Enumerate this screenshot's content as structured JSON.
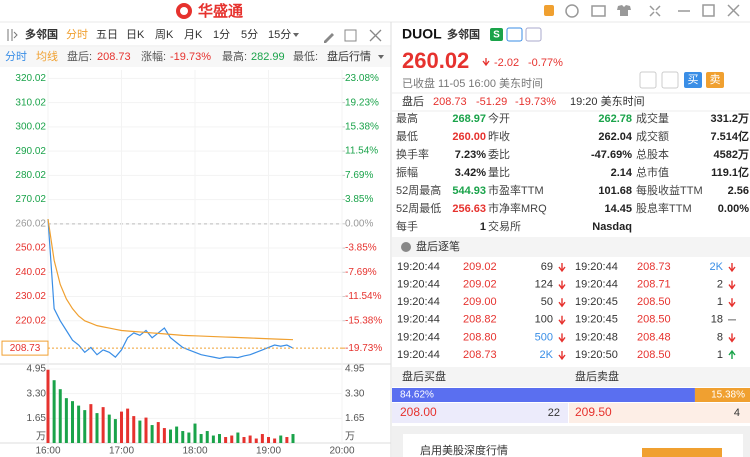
{
  "header": {
    "logo": "华盛通"
  },
  "toolbar": {
    "name": "多邻国",
    "tabs": [
      "分时",
      "五日",
      "日K",
      "周K",
      "月K",
      "1分",
      "5分",
      "15分"
    ]
  },
  "info": {
    "fields": [
      {
        "label": "盘后:",
        "value": "208.73",
        "color": "#e6322e"
      },
      {
        "label": "涨幅:",
        "value": "-19.73%",
        "color": "#e6322e"
      },
      {
        "label": "最高:",
        "value": "282.99",
        "color": "#1aa34a"
      },
      {
        "label": "最低:"
      }
    ],
    "link": "盘后行情"
  },
  "chart_data": {
    "type": "line",
    "x": [
      "16:00",
      "16:05",
      "16:10",
      "16:15",
      "16:20",
      "16:25",
      "16:30",
      "16:35",
      "16:40",
      "16:45",
      "16:50",
      "16:55",
      "17:00",
      "17:05",
      "17:10",
      "17:15",
      "17:20",
      "17:25",
      "17:30",
      "17:35",
      "17:40",
      "17:45",
      "17:50",
      "17:55",
      "18:00",
      "18:05",
      "18:10",
      "18:15",
      "18:20",
      "18:25",
      "18:30",
      "18:35",
      "18:40",
      "18:45",
      "18:50",
      "18:55",
      "19:00",
      "19:05",
      "19:10",
      "19:15",
      "19:20"
    ],
    "series": [
      {
        "name": "分时",
        "color": "#3a8ee6",
        "values": [
          262,
          225,
          220,
          216,
          212,
          210,
          207,
          209,
          206,
          208,
          207,
          205,
          208,
          213,
          215,
          214,
          216,
          213,
          215,
          217,
          213,
          211,
          209,
          208,
          207,
          206,
          205.5,
          205,
          204.5,
          205,
          205,
          204.8,
          205.5,
          206,
          207,
          208,
          209,
          210,
          209.5,
          210,
          208.73
        ]
      },
      {
        "name": "均线",
        "color": "#f0a030",
        "values": [
          262,
          245,
          235,
          229,
          225,
          222,
          220,
          219,
          218,
          217.5,
          217,
          216.5,
          216,
          215.8,
          215.6,
          215.4,
          215.2,
          215,
          214.8,
          214.6,
          214.4,
          214.2,
          214,
          213.9,
          213.8,
          213.7,
          213.6,
          213.5,
          213.4,
          213.3,
          213.2,
          213.1,
          213,
          212.9,
          212.8,
          212.7,
          212.6,
          212.5,
          212.4,
          212.3,
          212.2
        ]
      }
    ],
    "volume": {
      "values": [
        4.9,
        4.2,
        3.6,
        3.0,
        2.8,
        2.5,
        2.2,
        2.6,
        2.0,
        2.4,
        1.9,
        1.6,
        2.1,
        2.3,
        1.8,
        1.5,
        1.7,
        1.2,
        1.4,
        1.0,
        0.9,
        1.1,
        0.8,
        0.7,
        1.3,
        0.6,
        0.8,
        0.5,
        0.6,
        0.4,
        0.5,
        0.7,
        0.4,
        0.5,
        0.3,
        0.6,
        0.4,
        0.3,
        0.5,
        0.4,
        0.6
      ],
      "ylim": [
        0,
        4.95
      ],
      "yticks": [
        4.95,
        {
          "value": 3.3,
          "label": "3.30"
        },
        1.65
      ],
      "unit": "万",
      "up_color": "#e6322e",
      "down_color": "#1aa34a"
    },
    "xlim": [
      "16:00",
      "20:00"
    ],
    "xticks": [
      "16:00",
      "17:00",
      "18:00",
      "19:00",
      "20:00"
    ],
    "ylim": [
      203,
      323.5
    ],
    "yticks": [
      320.02,
      310.02,
      300.02,
      290.02,
      280.02,
      270.02,
      260.02,
      250.02,
      240.02,
      230.02,
      220.02
    ],
    "y2lim": [
      -21.93,
      24.41
    ],
    "y2ticks": [
      {
        "value": 23.08,
        "label": "23.08%"
      },
      {
        "value": 19.23,
        "label": "19.23%"
      },
      {
        "value": 15.38,
        "label": "15.38%"
      },
      {
        "value": 11.54,
        "label": "11.54%"
      },
      {
        "value": 7.69,
        "label": "7.69%"
      },
      {
        "value": 3.85,
        "label": "3.85%"
      },
      {
        "value": 0,
        "label": "0.00%"
      },
      {
        "value": -3.85,
        "label": "-3.85%"
      },
      {
        "value": -7.69,
        "label": "-7.69%"
      },
      {
        "value": -11.54,
        "label": "-11.54%"
      },
      {
        "value": -15.38,
        "label": "-15.38%"
      }
    ],
    "last_price": 208.73,
    "last_pct": {
      "value": -19.73,
      "label": "-19.73%"
    },
    "grid": true
  },
  "quote": {
    "code": "DUOL",
    "name": "多邻国",
    "badge": "S",
    "price": "260.02",
    "change": "-2.02",
    "change_pct": "-0.77%",
    "status": "已收盘 11-05 16:00 美东时间",
    "after_label": "盘后",
    "after_price": "208.73",
    "after_change": "-51.29",
    "after_pct": "-19.73%",
    "after_time": "19:20 美东时间",
    "buy": "买",
    "sell": "卖"
  },
  "stats": [
    [
      {
        "label": "最高",
        "value": "268.97",
        "color": "#1aa34a"
      },
      {
        "label": "今开",
        "value": "262.78",
        "color": "#1aa34a"
      },
      {
        "label": "成交量",
        "value": "331.2万"
      }
    ],
    [
      {
        "label": "最低",
        "value": "260.00",
        "color": "#e6322e"
      },
      {
        "label": "昨收",
        "value": "262.04"
      },
      {
        "label": "成交额",
        "value": "7.514亿"
      }
    ],
    [
      {
        "label": "换手率",
        "value": "7.23%"
      },
      {
        "label": "委比",
        "value": "-47.69%"
      },
      {
        "label": "总股本",
        "value": "4582万"
      }
    ],
    [
      {
        "label": "振幅",
        "value": "3.42%"
      },
      {
        "label": "量比",
        "value": "2.14"
      },
      {
        "label": "总市值",
        "value": "119.1亿"
      }
    ],
    [
      {
        "label": "52周最高",
        "value": "544.93",
        "color": "#1aa34a"
      },
      {
        "label": "市盈率TTM",
        "value": "101.68"
      },
      {
        "label": "每股收益TTM",
        "value": "2.56"
      }
    ],
    [
      {
        "label": "52周最低",
        "value": "256.63",
        "color": "#e6322e"
      },
      {
        "label": "市净率MRQ",
        "value": "14.45"
      },
      {
        "label": "股息率TTM",
        "value": "0.00%"
      }
    ],
    [
      {
        "label": "每手",
        "value": "1"
      },
      {
        "label": "交易所",
        "value": "Nasdaq"
      }
    ]
  ],
  "trades": {
    "title": "盘后逐笔",
    "left": [
      {
        "time": "19:20:44",
        "price": "209.02",
        "vol": "69",
        "dir": "down"
      },
      {
        "time": "19:20:44",
        "price": "209.02",
        "vol": "124",
        "dir": "down"
      },
      {
        "time": "19:20:44",
        "price": "209.00",
        "vol": "50",
        "dir": "down"
      },
      {
        "time": "19:20:44",
        "price": "208.82",
        "vol": "100",
        "dir": "down"
      },
      {
        "time": "19:20:44",
        "price": "208.80",
        "vol": "500",
        "dir": "down",
        "vol_color": "#3a8ee6"
      },
      {
        "time": "19:20:44",
        "price": "208.73",
        "vol": "2K",
        "dir": "down",
        "vol_color": "#3a8ee6"
      }
    ],
    "right": [
      {
        "time": "19:20:44",
        "price": "208.73",
        "vol": "2K",
        "dir": "down",
        "vol_color": "#3a8ee6"
      },
      {
        "time": "19:20:44",
        "price": "208.71",
        "vol": "2",
        "dir": "down"
      },
      {
        "time": "19:20:45",
        "price": "208.50",
        "vol": "1",
        "dir": "down"
      },
      {
        "time": "19:20:45",
        "price": "208.50",
        "vol": "18",
        "dir": "flat"
      },
      {
        "time": "19:20:48",
        "price": "208.48",
        "vol": "8",
        "dir": "down"
      },
      {
        "time": "19:20:50",
        "price": "208.50",
        "vol": "1",
        "dir": "up"
      }
    ]
  },
  "depth": {
    "buy_title": "盘后买盘",
    "sell_title": "盘后卖盘",
    "buy_pct": {
      "value": 84.62,
      "label": "84.62%"
    },
    "sell_pct": {
      "value": 15.38,
      "label": "15.38%"
    },
    "bid": {
      "price": "208.00",
      "size": "22"
    },
    "ask": {
      "price": "209.50",
      "size": "4"
    }
  },
  "promo": {
    "text": "启用美股深度行情"
  }
}
